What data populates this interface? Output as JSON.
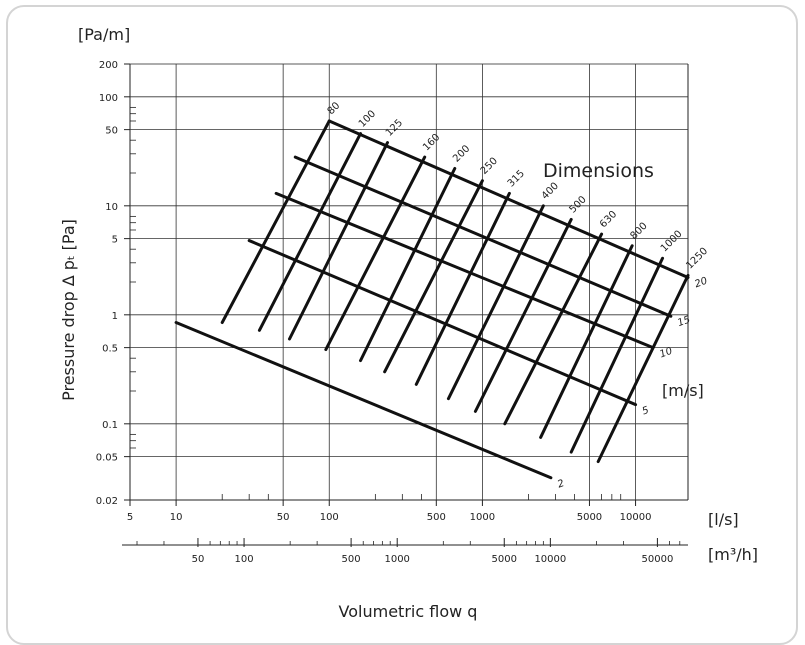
{
  "chart_data": {
    "type": "line",
    "title": "",
    "y_unit": "[Pa/m]",
    "ylabel": "Pressure drop ∆ pₜ [Pa]",
    "xlabel": "Volumetric flow q",
    "x_unit_ls": "[l/s]",
    "x_unit_m3h": "[m³/h]",
    "velocity_unit": "[m/s]",
    "dimensions_label": "Dimensions",
    "y_scale": "log",
    "x_scale": "log",
    "ylim": [
      0.02,
      200
    ],
    "xlim_ls": [
      5,
      22000
    ],
    "y_ticks": [
      "200",
      "100",
      "50",
      "10",
      "5",
      "1",
      "0.5",
      "0.1",
      "0.05",
      "0.02"
    ],
    "x_ticks_ls": [
      "5",
      "10",
      "50",
      "100",
      "500",
      "1000",
      "5000",
      "10000"
    ],
    "x_ticks_m3h": [
      "50",
      "100",
      "500",
      "1000",
      "5000",
      "10000",
      "50000"
    ],
    "diameter_lines": [
      {
        "label": "80",
        "points": [
          [
            20,
            0.85
          ],
          [
            100,
            60
          ]
        ]
      },
      {
        "label": "100",
        "points": [
          [
            35,
            0.72
          ],
          [
            160,
            46
          ]
        ]
      },
      {
        "label": "125",
        "points": [
          [
            55,
            0.6
          ],
          [
            240,
            38
          ]
        ]
      },
      {
        "label": "160",
        "points": [
          [
            95,
            0.48
          ],
          [
            420,
            28
          ]
        ]
      },
      {
        "label": "200",
        "points": [
          [
            160,
            0.38
          ],
          [
            660,
            22
          ]
        ]
      },
      {
        "label": "250",
        "points": [
          [
            230,
            0.3
          ],
          [
            1000,
            17
          ]
        ]
      },
      {
        "label": "315",
        "points": [
          [
            370,
            0.23
          ],
          [
            1500,
            13
          ]
        ]
      },
      {
        "label": "400",
        "points": [
          [
            600,
            0.17
          ],
          [
            2500,
            10
          ]
        ]
      },
      {
        "label": "500",
        "points": [
          [
            900,
            0.13
          ],
          [
            3800,
            7.5
          ]
        ]
      },
      {
        "label": "630",
        "points": [
          [
            1400,
            0.1
          ],
          [
            6000,
            5.5
          ]
        ]
      },
      {
        "label": "800",
        "points": [
          [
            2400,
            0.075
          ],
          [
            9500,
            4.3
          ]
        ]
      },
      {
        "label": "1000",
        "points": [
          [
            3800,
            0.055
          ],
          [
            15000,
            3.3
          ]
        ]
      },
      {
        "label": "1250",
        "points": [
          [
            5700,
            0.045
          ],
          [
            22000,
            2.3
          ]
        ]
      }
    ],
    "velocity_lines": [
      {
        "label": "2",
        "points": [
          [
            10,
            0.85
          ],
          [
            2800,
            0.032
          ]
        ]
      },
      {
        "label": "5",
        "points": [
          [
            30,
            4.8
          ],
          [
            10000,
            0.15
          ]
        ]
      },
      {
        "label": "10",
        "points": [
          [
            45,
            13
          ],
          [
            13000,
            0.5
          ]
        ]
      },
      {
        "label": "15",
        "points": [
          [
            60,
            28
          ],
          [
            17000,
            0.97
          ]
        ]
      },
      {
        "label": "20",
        "points": [
          [
            100,
            60
          ],
          [
            22000,
            2.2
          ]
        ]
      }
    ],
    "grid": true
  }
}
